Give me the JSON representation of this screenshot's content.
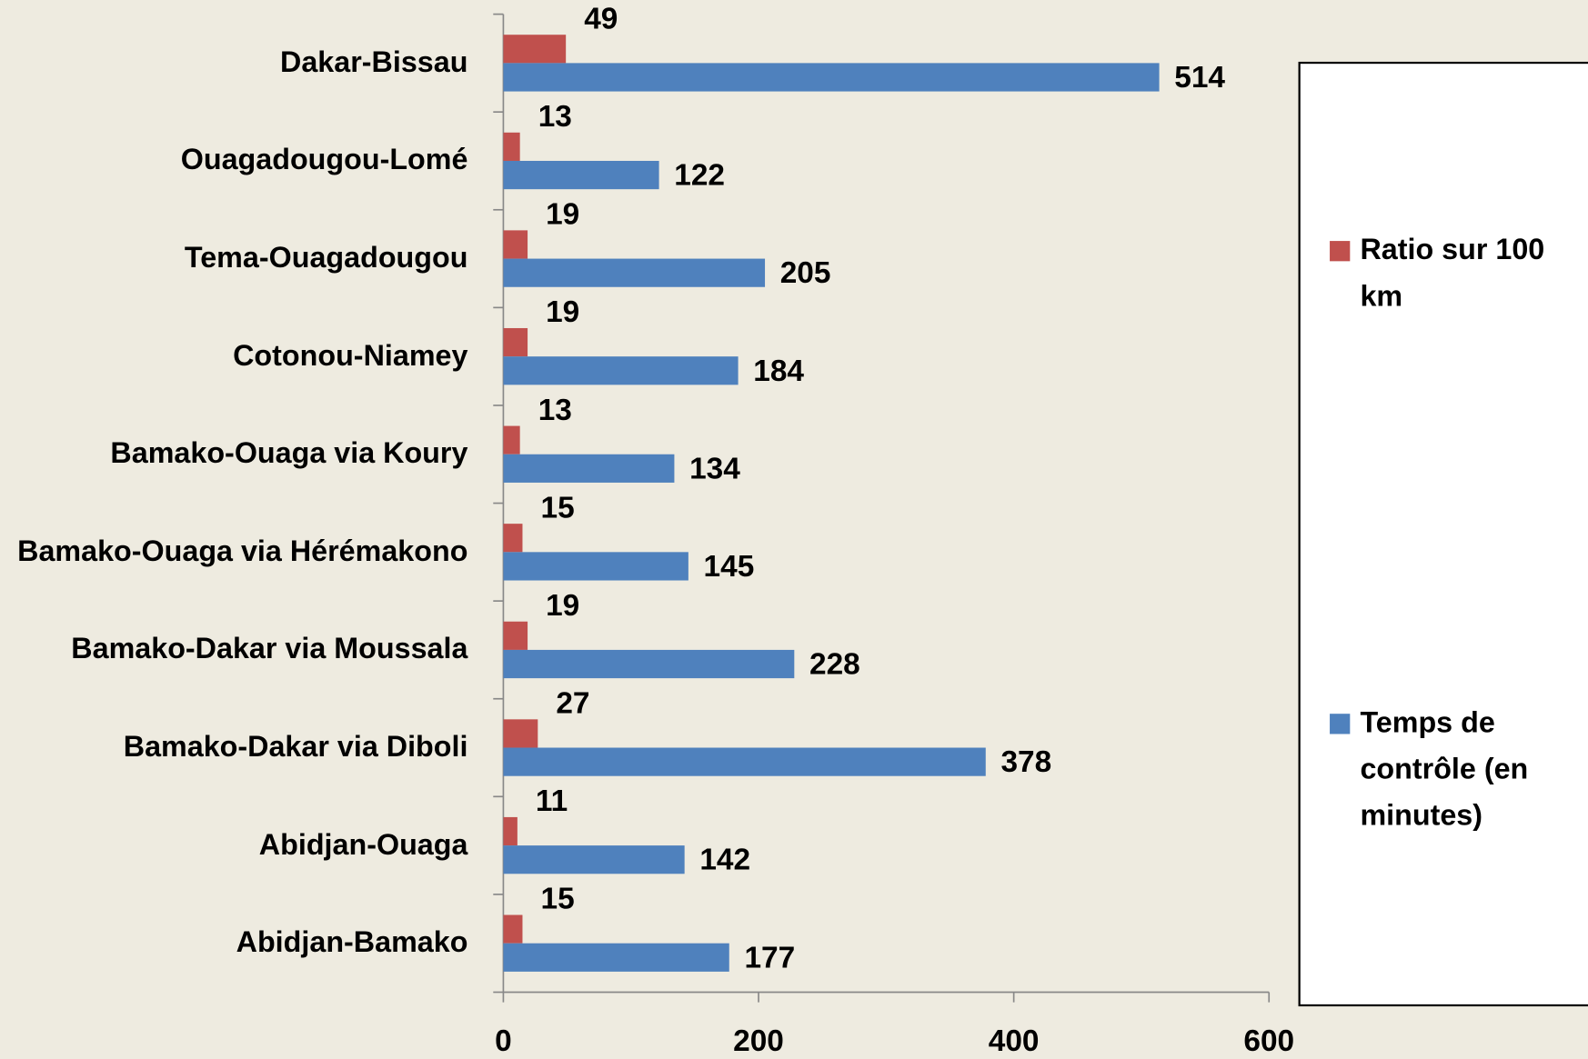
{
  "chart_data": {
    "type": "barh",
    "categories": [
      "Dakar-Bissau",
      "Ouagadougou-Lomé",
      "Tema-Ouagadougou",
      "Cotonou-Niamey",
      "Bamako-Ouaga via Koury",
      "Bamako-Ouaga via Hérémakono",
      "Bamako-Dakar via Moussala",
      "Bamako-Dakar via Diboli",
      "Abidjan-Ouaga",
      "Abidjan-Bamako"
    ],
    "series": [
      {
        "name": "Ratio sur 100 km",
        "color": "#c0504d",
        "values": [
          49,
          13,
          19,
          19,
          13,
          15,
          19,
          27,
          11,
          15
        ]
      },
      {
        "name": "Temps de contrôle (en minutes)",
        "color": "#4f81bd",
        "values": [
          514,
          122,
          205,
          184,
          134,
          145,
          228,
          378,
          142,
          177
        ]
      }
    ],
    "xlim": [
      0,
      600
    ],
    "xticks": [
      0,
      200,
      400,
      600
    ],
    "legend": "right"
  }
}
